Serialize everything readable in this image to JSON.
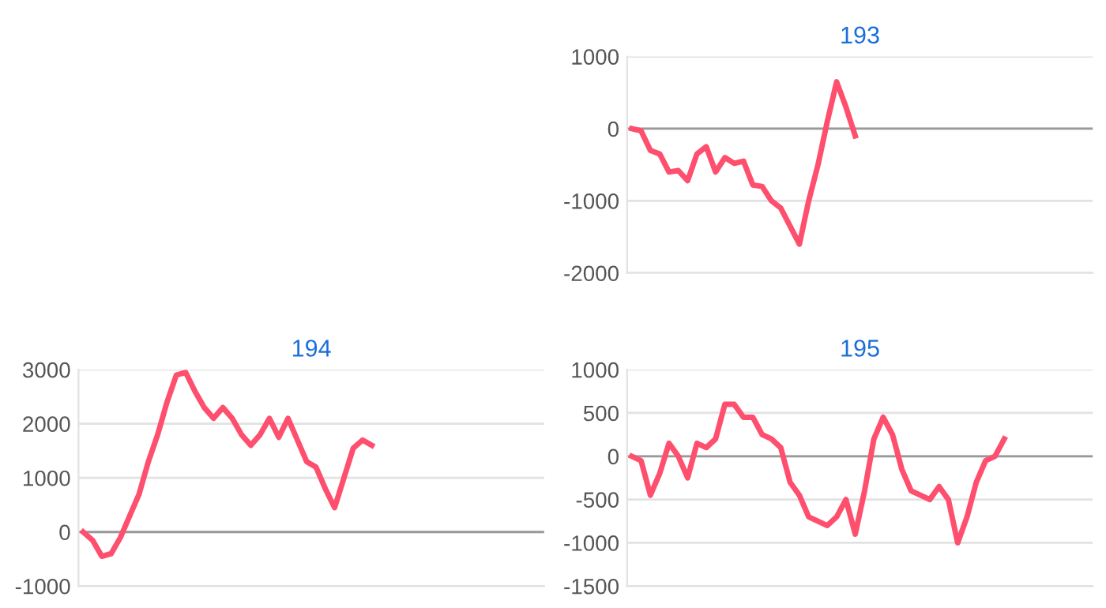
{
  "chart_data": [
    {
      "type": "line",
      "title": "193",
      "categories": [
        null,
        null,
        null,
        null,
        null,
        null,
        null,
        null,
        null,
        null,
        null,
        null,
        null,
        null,
        null,
        null,
        null,
        null,
        null,
        null,
        null,
        null,
        null,
        null,
        null,
        null,
        null,
        null,
        null,
        null,
        null,
        null,
        null,
        null,
        null,
        null,
        null,
        null,
        null,
        null,
        null,
        null,
        null,
        null,
        null,
        null,
        null,
        null,
        null,
        null
      ],
      "series": [
        {
          "color": "#ff4f6e",
          "values": [
            0,
            -30,
            -300,
            -350,
            -600,
            -580,
            -720,
            -350,
            -250,
            -600,
            -400,
            -480,
            -450,
            -780,
            -800,
            -1000,
            -1100,
            -1350,
            -1600,
            -1000,
            -500,
            100,
            650,
            300,
            -100,
            null,
            null,
            null,
            null,
            null,
            null,
            null,
            null,
            null,
            null,
            null,
            null,
            null,
            null,
            null,
            null,
            null,
            null,
            null,
            null,
            null,
            null,
            null,
            null,
            null
          ]
        }
      ],
      "ylim": [
        -2000,
        1000
      ],
      "yticks": [
        -2000,
        -1000,
        0,
        1000
      ],
      "grid": "y",
      "tick_labels": "y",
      "marker": "none",
      "line_style": "solid",
      "ref_lines": [
        {
          "axis": "y",
          "value": 0,
          "color": "#999999"
        }
      ]
    },
    {
      "type": "line",
      "title": "194",
      "categories": [
        null,
        null,
        null,
        null,
        null,
        null,
        null,
        null,
        null,
        null,
        null,
        null,
        null,
        null,
        null,
        null,
        null,
        null,
        null,
        null,
        null,
        null,
        null,
        null,
        null,
        null,
        null,
        null,
        null,
        null,
        null,
        null,
        null,
        null,
        null,
        null,
        null,
        null,
        null,
        null,
        null,
        null,
        null,
        null,
        null,
        null,
        null,
        null,
        null,
        null
      ],
      "series": [
        {
          "color": "#ff4f6e",
          "values": [
            0,
            -150,
            -450,
            -400,
            -100,
            300,
            700,
            1300,
            1800,
            2400,
            2900,
            2950,
            2600,
            2300,
            2100,
            2300,
            2100,
            1800,
            1600,
            1800,
            2100,
            1750,
            2100,
            1700,
            1300,
            1200,
            800,
            450,
            1000,
            1550,
            1700,
            1600,
            null,
            null,
            null,
            null,
            null,
            null,
            null,
            null,
            null,
            null,
            null,
            null,
            null,
            null,
            null,
            null,
            null,
            null
          ]
        }
      ],
      "ylim": [
        -1000,
        3000
      ],
      "yticks": [
        -1000,
        0,
        1000,
        2000,
        3000
      ],
      "grid": "y",
      "tick_labels": "y",
      "marker": "none",
      "line_style": "solid",
      "ref_lines": [
        {
          "axis": "y",
          "value": 0,
          "color": "#999999"
        }
      ]
    },
    {
      "type": "line",
      "title": "195",
      "categories": [
        null,
        null,
        null,
        null,
        null,
        null,
        null,
        null,
        null,
        null,
        null,
        null,
        null,
        null,
        null,
        null,
        null,
        null,
        null,
        null,
        null,
        null,
        null,
        null,
        null,
        null,
        null,
        null,
        null,
        null,
        null,
        null,
        null,
        null,
        null,
        null,
        null,
        null,
        null,
        null,
        null,
        null,
        null,
        null,
        null,
        null,
        null,
        null,
        null,
        null
      ],
      "series": [
        {
          "color": "#ff4f6e",
          "values": [
            0,
            -50,
            -450,
            -200,
            150,
            0,
            -250,
            150,
            100,
            200,
            600,
            600,
            450,
            450,
            250,
            200,
            100,
            -300,
            -450,
            -700,
            -750,
            -800,
            -700,
            -500,
            -900,
            -400,
            200,
            450,
            250,
            -150,
            -400,
            -450,
            -500,
            -350,
            -500,
            -1000,
            -700,
            -300,
            -50,
            0,
            200,
            null,
            null,
            null,
            null,
            null,
            null,
            null,
            null,
            null
          ]
        }
      ],
      "ylim": [
        -1500,
        1000
      ],
      "yticks": [
        -1500,
        -1000,
        -500,
        0,
        500,
        1000
      ],
      "grid": "y",
      "tick_labels": "y",
      "marker": "none",
      "line_style": "solid",
      "ref_lines": [
        {
          "axis": "y",
          "value": 0,
          "color": "#999999"
        }
      ]
    }
  ]
}
